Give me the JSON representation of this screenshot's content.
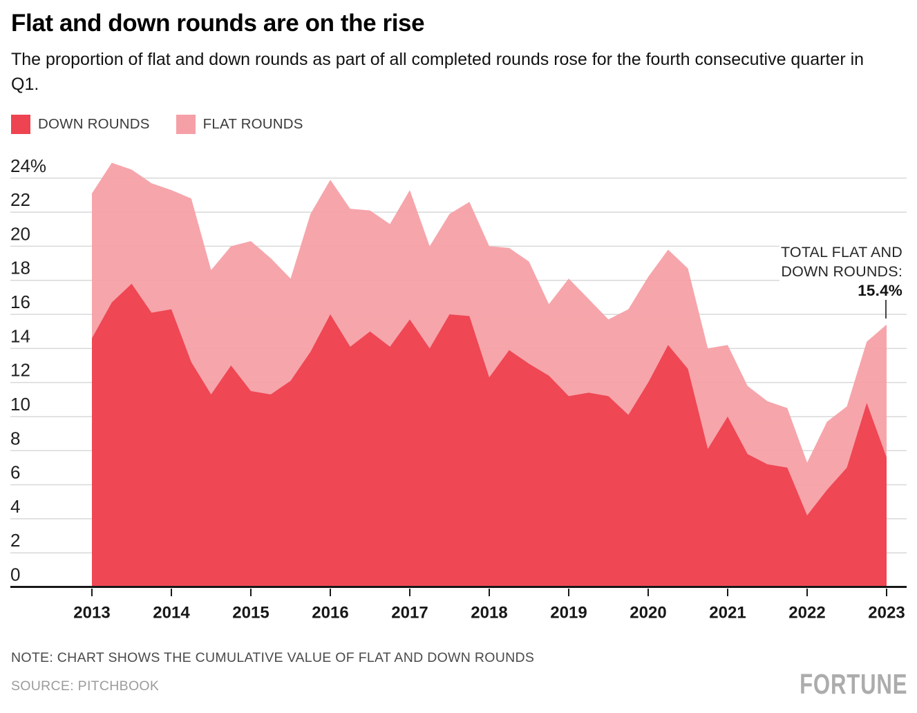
{
  "header": {
    "title": "Flat and down rounds are on the rise",
    "subtitle": "The proportion of flat and down rounds as part of all completed rounds rose for the fourth consecutive quarter in Q1."
  },
  "legend": [
    {
      "label": "DOWN ROUNDS",
      "color": "#ee4350"
    },
    {
      "label": "FLAT ROUNDS",
      "color": "#f5a0a7"
    }
  ],
  "annotation": {
    "line1": "TOTAL FLAT AND",
    "line2": "DOWN ROUNDS:",
    "value": "15.4%"
  },
  "footer": {
    "note": "NOTE: CHART SHOWS THE CUMULATIVE VALUE OF FLAT AND DOWN ROUNDS",
    "source": "SOURCE: PITCHBOOK",
    "logo": "FORTUNE"
  },
  "chart_data": {
    "type": "area",
    "stacked": true,
    "title": "Flat and down rounds are on the rise",
    "xlabel": "",
    "ylabel": "",
    "grid": true,
    "legend_position": "top-left",
    "ylim": [
      0,
      25.5
    ],
    "yticks": [
      0,
      2,
      4,
      6,
      8,
      10,
      12,
      14,
      16,
      18,
      20,
      22,
      24
    ],
    "ytick_top_label": "24%",
    "xticks": [
      2013,
      2014,
      2015,
      2016,
      2017,
      2018,
      2019,
      2020,
      2021,
      2022,
      2023
    ],
    "categories": [
      "2013 Q1",
      "2013 Q2",
      "2013 Q3",
      "2013 Q4",
      "2014 Q1",
      "2014 Q2",
      "2014 Q3",
      "2014 Q4",
      "2015 Q1",
      "2015 Q2",
      "2015 Q3",
      "2015 Q4",
      "2016 Q1",
      "2016 Q2",
      "2016 Q3",
      "2016 Q4",
      "2017 Q1",
      "2017 Q2",
      "2017 Q3",
      "2017 Q4",
      "2018 Q1",
      "2018 Q2",
      "2018 Q3",
      "2018 Q4",
      "2019 Q1",
      "2019 Q2",
      "2019 Q3",
      "2019 Q4",
      "2020 Q1",
      "2020 Q2",
      "2020 Q3",
      "2020 Q4",
      "2021 Q1",
      "2021 Q2",
      "2021 Q3",
      "2021 Q4",
      "2022 Q1",
      "2022 Q2",
      "2022 Q3",
      "2022 Q4",
      "2023 Q1"
    ],
    "series": [
      {
        "name": "DOWN ROUNDS",
        "color": "#ee4350",
        "values": [
          14.6,
          16.7,
          17.8,
          16.1,
          16.3,
          13.2,
          11.3,
          13.0,
          11.5,
          11.3,
          12.1,
          13.8,
          16.0,
          14.1,
          15.0,
          14.1,
          15.7,
          14.0,
          16.0,
          15.9,
          12.3,
          13.9,
          13.1,
          12.4,
          11.2,
          11.4,
          11.2,
          10.1,
          12.0,
          14.2,
          12.8,
          8.1,
          10.0,
          7.8,
          7.2,
          7.0,
          4.2,
          5.7,
          7.0,
          10.8,
          7.6
        ]
      },
      {
        "name": "FLAT ROUNDS",
        "color": "#f5a0a7",
        "values": [
          8.5,
          8.2,
          6.7,
          7.6,
          7.0,
          9.6,
          7.3,
          7.0,
          8.8,
          8.0,
          6.0,
          8.1,
          7.9,
          8.1,
          7.1,
          7.2,
          7.6,
          6.0,
          5.9,
          6.7,
          7.7,
          6.0,
          6.0,
          4.2,
          6.9,
          5.5,
          4.5,
          6.2,
          6.2,
          5.6,
          5.9,
          5.9,
          4.2,
          4.0,
          3.7,
          3.5,
          3.1,
          4.0,
          3.6,
          3.6,
          7.8
        ]
      }
    ],
    "total_flat_and_down": [
      23.1,
      24.9,
      24.5,
      23.7,
      23.3,
      22.8,
      18.6,
      20.0,
      20.3,
      19.3,
      18.1,
      21.9,
      23.9,
      22.2,
      22.1,
      21.3,
      23.3,
      20.0,
      21.9,
      22.6,
      20.0,
      19.9,
      19.1,
      16.6,
      18.1,
      16.9,
      15.7,
      16.3,
      18.2,
      19.8,
      18.7,
      14.0,
      14.2,
      11.8,
      10.9,
      10.5,
      7.3,
      9.7,
      10.6,
      14.4,
      15.4
    ]
  }
}
